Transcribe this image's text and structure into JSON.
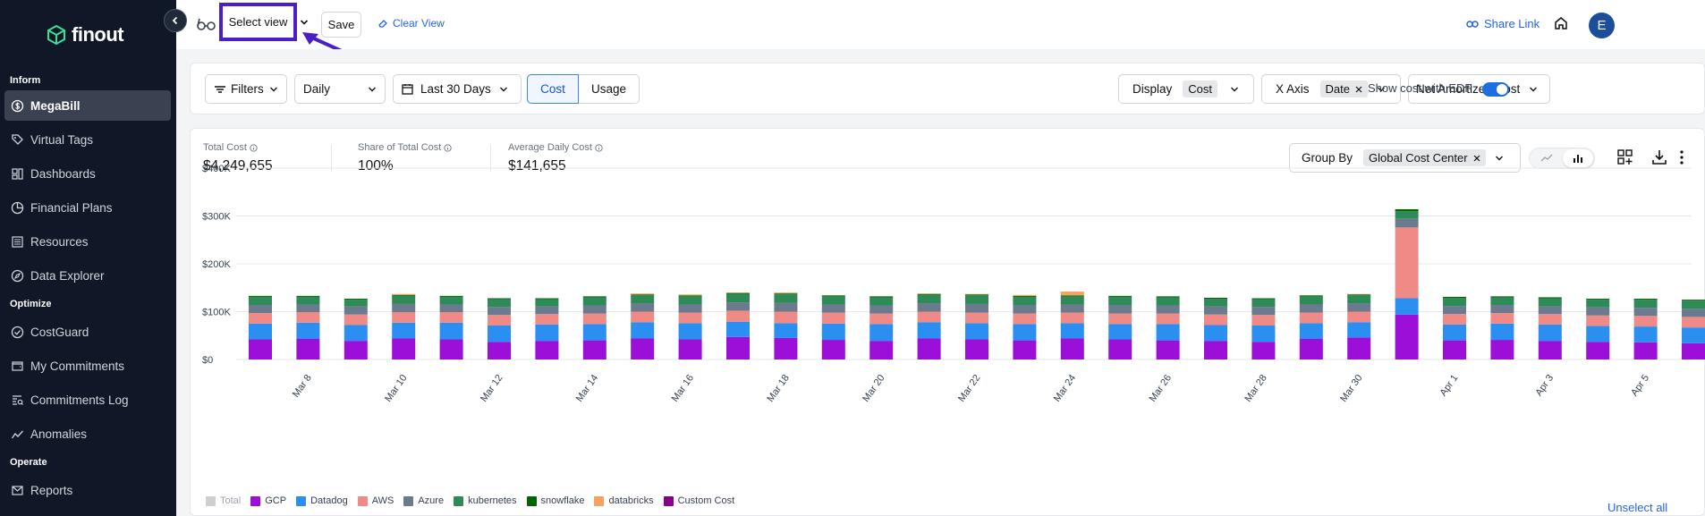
{
  "sidebar": {
    "logo_text": "finout",
    "sections": [
      {
        "title": "Inform",
        "items": [
          {
            "label": "MegaBill",
            "icon": "dollar-circle-icon",
            "active": true
          },
          {
            "label": "Virtual Tags",
            "icon": "tag-icon"
          },
          {
            "label": "Dashboards",
            "icon": "dashboard-icon"
          },
          {
            "label": "Financial Plans",
            "icon": "pie-chart-icon"
          },
          {
            "label": "Resources",
            "icon": "list-icon"
          },
          {
            "label": "Data Explorer",
            "icon": "compass-icon"
          }
        ]
      },
      {
        "title": "Optimize",
        "items": [
          {
            "label": "CostGuard",
            "icon": "check-circle-icon"
          },
          {
            "label": "My Commitments",
            "icon": "wallet-icon"
          },
          {
            "label": "Commitments Log",
            "icon": "log-icon"
          }
        ]
      },
      {
        "title": "",
        "items": [
          {
            "label": "Anomalies",
            "icon": "trend-icon"
          }
        ]
      },
      {
        "title": "Operate",
        "items": [
          {
            "label": "Reports",
            "icon": "mail-icon"
          }
        ]
      }
    ]
  },
  "topbar": {
    "select_view": "Select view",
    "save": "Save",
    "clear_view": "Clear View",
    "share_link": "Share Link",
    "avatar_initial": "E",
    "accent": "#4a1fc7"
  },
  "filters": {
    "filters_label": "Filters",
    "granularity": "Daily",
    "date_range": "Last 30 Days",
    "mode_cost": "Cost",
    "mode_usage": "Usage",
    "display_label": "Display",
    "display_value": "Cost",
    "xaxis_label": "X Axis",
    "xaxis_value": "Date",
    "cost_type": "Net Amortized Cost",
    "edp_label": "Show cost with EDP",
    "edp_enabled": true
  },
  "metrics": [
    {
      "label": "Total Cost",
      "value": "$4,249,655"
    },
    {
      "label": "Share of Total Cost",
      "value": "100%"
    },
    {
      "label": "Average Daily Cost",
      "value": "$141,655"
    }
  ],
  "group_by": {
    "label": "Group By",
    "value": "Global Cost Center"
  },
  "legend": {
    "unselect_all": "Unselect all"
  },
  "chart_data": {
    "type": "bar",
    "stacked": true,
    "ylim": [
      0,
      400000
    ],
    "y_ticks": [
      "$0",
      "$100K",
      "$200K",
      "$300K",
      "$400K"
    ],
    "categories": [
      "Mar 7",
      "Mar 8",
      "Mar 9",
      "Mar 10",
      "Mar 11",
      "Mar 12",
      "Mar 13",
      "Mar 14",
      "Mar 15",
      "Mar 16",
      "Mar 17",
      "Mar 18",
      "Mar 19",
      "Mar 20",
      "Mar 21",
      "Mar 22",
      "Mar 23",
      "Mar 24",
      "Mar 25",
      "Mar 26",
      "Mar 27",
      "Mar 28",
      "Mar 29",
      "Mar 30",
      "Mar 31",
      "Apr 1",
      "Apr 2",
      "Apr 3",
      "Apr 4",
      "Apr 5",
      "Apr 6"
    ],
    "x_tick_labels": [
      "Mar 8",
      "Mar 10",
      "Mar 12",
      "Mar 14",
      "Mar 16",
      "Mar 18",
      "Mar 20",
      "Mar 22",
      "Mar 24",
      "Mar 26",
      "Mar 28",
      "Mar 30",
      "Apr 1",
      "Apr 3",
      "Apr 5"
    ],
    "grid": true,
    "legend_position": "bottom-left",
    "series": [
      {
        "name": "Total",
        "color": "#cfcfcf",
        "values": [
          0,
          0,
          0,
          0,
          0,
          0,
          0,
          0,
          0,
          0,
          0,
          0,
          0,
          0,
          0,
          0,
          0,
          0,
          0,
          0,
          0,
          0,
          0,
          0,
          0,
          0,
          0,
          0,
          0,
          0,
          0
        ]
      },
      {
        "name": "GCP",
        "color": "#9b0fd8",
        "values": [
          42000,
          43000,
          39000,
          44000,
          42000,
          37000,
          39000,
          40000,
          44000,
          42000,
          47000,
          45000,
          41000,
          39000,
          44000,
          42000,
          40000,
          44000,
          42000,
          40000,
          39000,
          37000,
          43000,
          46000,
          94000,
          40000,
          41000,
          39000,
          37000,
          36000,
          34000
        ]
      },
      {
        "name": "Datadog",
        "color": "#2a8ff0",
        "values": [
          33000,
          34000,
          33000,
          33000,
          35000,
          34000,
          34000,
          34000,
          34000,
          34000,
          32000,
          31000,
          34000,
          35000,
          34000,
          34000,
          34000,
          32000,
          32000,
          34000,
          33000,
          34000,
          33000,
          32000,
          34000,
          33000,
          34000,
          34000,
          33000,
          33000,
          33000
        ]
      },
      {
        "name": "AWS",
        "color": "#f08a86",
        "values": [
          22000,
          22000,
          22000,
          22000,
          22000,
          22000,
          22000,
          22000,
          22000,
          22000,
          23000,
          24000,
          23000,
          22000,
          22000,
          22000,
          22000,
          22000,
          22000,
          22000,
          22000,
          22000,
          22000,
          22000,
          148000,
          22000,
          22000,
          22000,
          22000,
          22000,
          22000
        ]
      },
      {
        "name": "Azure",
        "color": "#6b7a8f",
        "values": [
          17000,
          16000,
          17000,
          17000,
          16000,
          17000,
          16000,
          17000,
          17000,
          17000,
          17000,
          18000,
          17000,
          17000,
          17000,
          18000,
          18000,
          17000,
          18000,
          17000,
          17000,
          17000,
          17000,
          17000,
          18000,
          17000,
          17000,
          16000,
          17000,
          17000,
          17000
        ]
      },
      {
        "name": "kubernetes",
        "color": "#2e8b57",
        "values": [
          17000,
          16000,
          14000,
          17000,
          16000,
          16000,
          15000,
          17000,
          17000,
          17000,
          18000,
          18000,
          17000,
          17000,
          18000,
          18000,
          17000,
          17000,
          17000,
          17000,
          16000,
          16000,
          17000,
          17000,
          16000,
          17000,
          16000,
          17000,
          16000,
          17000,
          17000
        ]
      },
      {
        "name": "snowflake",
        "color": "#006400",
        "values": [
          2000,
          2000,
          2000,
          2000,
          2000,
          2000,
          2000,
          2000,
          2000,
          2000,
          2000,
          2000,
          2000,
          2000,
          2000,
          2000,
          2000,
          2000,
          2000,
          2000,
          2000,
          2000,
          2000,
          2000,
          4000,
          2000,
          2000,
          2000,
          2000,
          2000,
          2000
        ]
      },
      {
        "name": "databricks",
        "color": "#f4a460",
        "values": [
          0,
          0,
          0,
          2000,
          0,
          0,
          0,
          0,
          2000,
          2000,
          1000,
          2000,
          0,
          0,
          1000,
          1000,
          2000,
          8000,
          0,
          0,
          0,
          0,
          0,
          1000,
          0,
          0,
          0,
          0,
          0,
          0,
          0
        ]
      },
      {
        "name": "Custom Cost",
        "color": "#8b008b",
        "values": [
          0,
          0,
          0,
          0,
          0,
          0,
          0,
          0,
          0,
          0,
          0,
          0,
          0,
          0,
          0,
          0,
          0,
          0,
          0,
          0,
          0,
          0,
          0,
          0,
          0,
          0,
          0,
          0,
          0,
          0,
          0
        ]
      }
    ]
  }
}
